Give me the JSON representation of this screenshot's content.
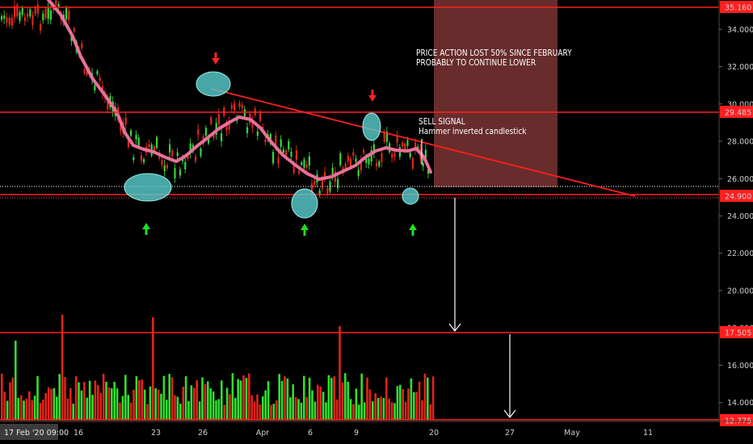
{
  "chart_data": {
    "type": "candlestick",
    "y_axis": {
      "range": [
        12.775,
        35.8
      ],
      "ticks": [
        34.0,
        32.0,
        30.0,
        28.0,
        26.0,
        24.0,
        22.0,
        20.0,
        18.0,
        16.0,
        14.0
      ],
      "tick_labels": [
        "34.000",
        "32.000",
        "30.000",
        "28.000",
        "26.000",
        "24.000",
        "22.000",
        "20.000",
        "18.000",
        "16.000",
        "14.000"
      ]
    },
    "x_axis": {
      "tick_labels": [
        "16",
        "23",
        "26",
        "Apr",
        "6",
        "9",
        "20",
        "27",
        "May",
        "11"
      ],
      "cursor_label": "17 Feb '20  09:00"
    },
    "horizontal_levels": [
      {
        "value": 35.16,
        "label": "35.160"
      },
      {
        "value": 29.485,
        "label": "29.485"
      },
      {
        "value": 24.9,
        "label": "24.900"
      },
      {
        "value": 17.505,
        "label": "17.505"
      },
      {
        "value": 12.775,
        "label": "12.775"
      }
    ],
    "annotations": {
      "box_text": [
        "PRICE ACTION LOST 50% SINCE FEBRUARY",
        "PROBABLY TO CONTINUE LOWER"
      ],
      "signal_text": [
        "SELL SIGNAL",
        "Hammer inverted candlestick"
      ]
    },
    "colors": {
      "up": "#26d926",
      "down": "#e0271f",
      "moving_average": "#e8709a",
      "levels": "#ff1f1f",
      "highlight": "#5ad0d0",
      "projection_box": "#7a3434"
    }
  }
}
